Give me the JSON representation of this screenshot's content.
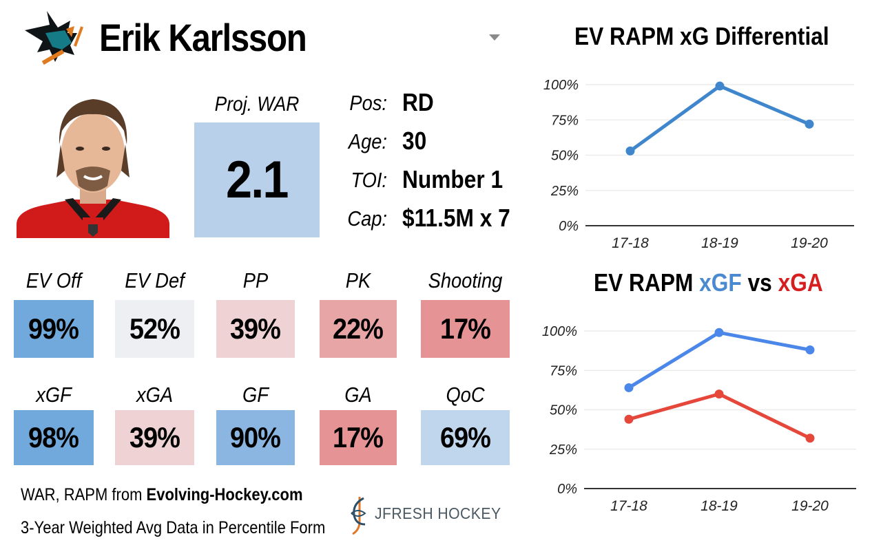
{
  "header": {
    "player_name": "Erik Karlsson",
    "team_logo_icon": "sharks-logo-icon",
    "dropdown_icon": "caret-down-icon"
  },
  "war": {
    "label": "Proj. WAR",
    "value": "2.1",
    "color": "#b8d0e9"
  },
  "info": [
    {
      "key": "Pos:",
      "value": "RD"
    },
    {
      "key": "Age:",
      "value": "30"
    },
    {
      "key": "TOI:",
      "value": "Number 1"
    },
    {
      "key": "Cap:",
      "value": "$11.5M x 7"
    }
  ],
  "stats_row1": [
    {
      "label": "EV Off",
      "value": "99%",
      "color": "#72a9dc"
    },
    {
      "label": "EV Def",
      "value": "52%",
      "color": "#eeeff3"
    },
    {
      "label": "PP",
      "value": "39%",
      "color": "#efd3d4"
    },
    {
      "label": "PK",
      "value": "22%",
      "color": "#e8a5a6"
    },
    {
      "label": "Shooting",
      "value": "17%",
      "color": "#e59394"
    }
  ],
  "stats_row2": [
    {
      "label": "xGF",
      "value": "98%",
      "color": "#72a9dc"
    },
    {
      "label": "xGA",
      "value": "39%",
      "color": "#efd3d4"
    },
    {
      "label": "GF",
      "value": "90%",
      "color": "#8ab6e1"
    },
    {
      "label": "GA",
      "value": "17%",
      "color": "#e59394"
    },
    {
      "label": "QoC",
      "value": "69%",
      "color": "#c0d6ec"
    }
  ],
  "footer": {
    "source_prefix": "WAR, RAPM from ",
    "source_site": "Evolving-Hockey.com",
    "note": "3-Year Weighted Avg Data in Percentile Form",
    "brand": "JFRESH HOCKEY"
  },
  "chart_data": [
    {
      "type": "line",
      "title": "EV RAPM xG Differential",
      "categories": [
        "17-18",
        "18-19",
        "19-20"
      ],
      "series": [
        {
          "name": "xG Differential",
          "values": [
            53,
            99,
            72
          ],
          "color": "#3f86cc"
        }
      ],
      "yticks": [
        "0%",
        "25%",
        "50%",
        "75%",
        "100%"
      ],
      "ylim": [
        0,
        100
      ],
      "grid": true,
      "legend": "none",
      "xlabel": "",
      "ylabel": ""
    },
    {
      "type": "line",
      "title_parts": {
        "prefix": "EV RAPM ",
        "a": "xGF",
        "mid": " vs ",
        "b": "xGA"
      },
      "categories": [
        "17-18",
        "18-19",
        "19-20"
      ],
      "series": [
        {
          "name": "xGF",
          "values": [
            64,
            99,
            88
          ],
          "color": "#4a87e8"
        },
        {
          "name": "xGA",
          "values": [
            44,
            60,
            32
          ],
          "color": "#e5473b"
        }
      ],
      "yticks": [
        "0%",
        "25%",
        "50%",
        "75%",
        "100%"
      ],
      "ylim": [
        0,
        100
      ],
      "grid": true,
      "legend": "none",
      "xlabel": "",
      "ylabel": ""
    }
  ]
}
